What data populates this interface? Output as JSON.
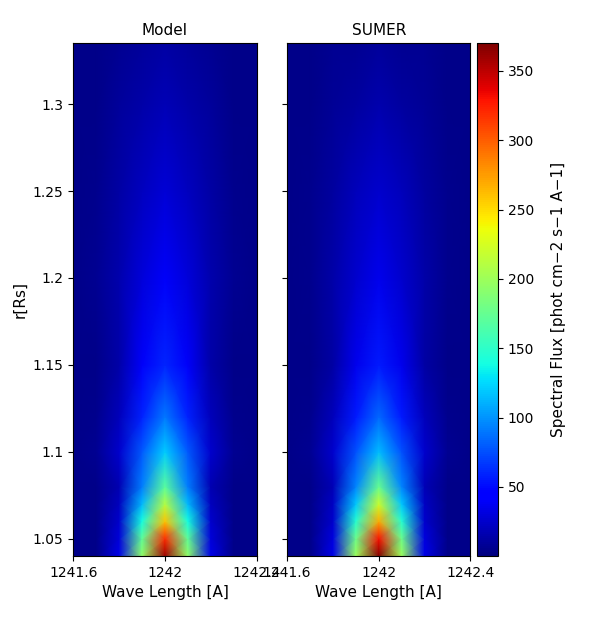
{
  "chart_data": [
    {
      "type": "heatmap",
      "title": "Model",
      "xlabel": "Wave Length [A]",
      "ylabel": "r[Rs]",
      "x": [
        1241.6,
        1241.7,
        1241.8,
        1241.9,
        1242.0,
        1242.1,
        1242.2,
        1242.3,
        1242.4
      ],
      "y": [
        1.04,
        1.05,
        1.06,
        1.07,
        1.08,
        1.1,
        1.12,
        1.15,
        1.2,
        1.25,
        1.3,
        1.335
      ],
      "xlim": [
        1241.6,
        1242.4
      ],
      "ylim": [
        1.04,
        1.335
      ],
      "xticks": [
        1241.6,
        1242,
        1242.4
      ],
      "yticks": [
        1.05,
        1.1,
        1.15,
        1.2,
        1.25,
        1.3
      ],
      "tick_labels": true,
      "cells": [
        [
          3,
          4,
          34,
          194,
          360,
          194,
          34,
          4,
          3
        ],
        [
          3,
          4,
          30,
          173,
          320,
          173,
          30,
          4,
          3
        ],
        [
          3,
          4,
          25,
          140,
          260,
          140,
          25,
          4,
          3
        ],
        [
          3,
          4,
          21,
          113,
          210,
          113,
          21,
          4,
          3
        ],
        [
          3,
          4,
          17,
          92,
          170,
          92,
          17,
          4,
          3
        ],
        [
          3,
          6,
          26,
          79,
          120,
          79,
          26,
          6,
          3
        ],
        [
          3,
          5,
          20,
          59,
          90,
          59,
          20,
          5,
          3
        ],
        [
          3,
          4,
          14,
          40,
          60,
          40,
          14,
          4,
          3
        ],
        [
          3,
          6,
          15,
          30,
          40,
          30,
          15,
          6,
          3
        ],
        [
          3,
          5,
          12,
          21,
          28,
          21,
          12,
          5,
          3
        ],
        [
          3,
          4,
          9,
          14,
          18,
          14,
          9,
          4,
          3
        ],
        [
          3,
          4,
          7,
          10,
          12,
          10,
          7,
          4,
          3
        ]
      ]
    },
    {
      "type": "heatmap",
      "title": "SUMER",
      "xlabel": "Wave Length [A]",
      "x": [
        1241.6,
        1241.7,
        1241.8,
        1241.9,
        1242.0,
        1242.1,
        1242.2,
        1242.3,
        1242.4
      ],
      "y": [
        1.04,
        1.05,
        1.06,
        1.07,
        1.08,
        1.1,
        1.12,
        1.15,
        1.2,
        1.25,
        1.3,
        1.335
      ],
      "xlim": [
        1241.6,
        1242.4
      ],
      "ylim": [
        1.04,
        1.335
      ],
      "xticks": [
        1241.6,
        1242,
        1242.4
      ],
      "yticks": [
        1.05,
        1.1,
        1.15,
        1.2,
        1.25,
        1.3
      ],
      "tick_labels": "x",
      "cells": [
        [
          3,
          4,
          34,
          200,
          370,
          200,
          34,
          4,
          3
        ],
        [
          3,
          4,
          31,
          178,
          330,
          178,
          31,
          4,
          3
        ],
        [
          3,
          4,
          26,
          146,
          270,
          146,
          26,
          4,
          3
        ],
        [
          3,
          4,
          22,
          119,
          220,
          119,
          22,
          4,
          3
        ],
        [
          3,
          4,
          18,
          95,
          175,
          95,
          18,
          4,
          3
        ],
        [
          3,
          6,
          25,
          76,
          115,
          76,
          25,
          6,
          3
        ],
        [
          3,
          5,
          19,
          56,
          85,
          56,
          19,
          5,
          3
        ],
        [
          3,
          4,
          13,
          36,
          55,
          36,
          13,
          4,
          3
        ],
        [
          3,
          5,
          14,
          26,
          35,
          26,
          14,
          5,
          3
        ],
        [
          3,
          5,
          11,
          19,
          25,
          19,
          11,
          5,
          3
        ],
        [
          3,
          4,
          8,
          11,
          15,
          11,
          8,
          4,
          3
        ],
        [
          3,
          4,
          6,
          7,
          10,
          7,
          6,
          4,
          3
        ]
      ],
      "colorbar": {
        "label": "Spectral Flux [phot cm−2 s−1 A−1]",
        "range": [
          0,
          370
        ],
        "ticks": [
          50,
          100,
          150,
          200,
          250,
          300,
          350
        ]
      }
    }
  ]
}
